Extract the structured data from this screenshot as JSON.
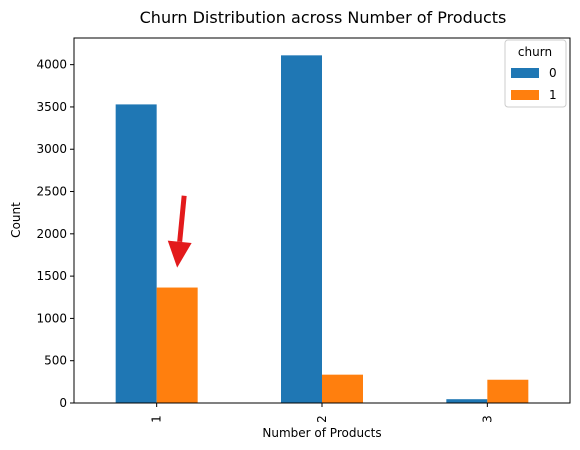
{
  "chart_data": {
    "type": "bar",
    "title": "Churn Distribution across Number of Products",
    "xlabel": "Number of Products",
    "ylabel": "Count",
    "categories": [
      "1",
      "2",
      "3"
    ],
    "series": [
      {
        "name": "0",
        "values": [
          3530,
          4110,
          45
        ],
        "color": "#1f77b4"
      },
      {
        "name": "1",
        "values": [
          1365,
          335,
          275
        ],
        "color": "#ff7f0e"
      }
    ],
    "ylim": [
      0,
      4315
    ],
    "yticks": [
      0,
      500,
      1000,
      1500,
      2000,
      2500,
      3000,
      3500,
      4000
    ],
    "grid": false,
    "legend": {
      "title": "churn",
      "position": "top-right"
    },
    "annotation": {
      "type": "arrow",
      "color": "#e31a1c",
      "category": "1",
      "series": "1",
      "from_value": 2450,
      "to_value": 1600
    }
  }
}
